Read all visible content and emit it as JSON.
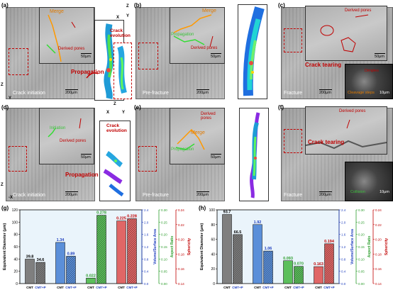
{
  "panels": {
    "a": {
      "label": "(a)",
      "stage": "Crack initiation",
      "merge": "Merge",
      "derived_pores": "Derived pores",
      "inset_scale": "50μm",
      "main_scale": "200μm",
      "propagation": "Propagation",
      "crack_evolution": "Crack evolution",
      "axes": [
        "Z",
        "X",
        "Y"
      ]
    },
    "b": {
      "label": "(b)",
      "stage": "Pre-fracture",
      "merge": "Merge",
      "derived_pores": "Derived pores",
      "propagation": "Propagation",
      "inset_scale": "50μm",
      "main_scale": "200μm"
    },
    "c": {
      "label": "(c)",
      "stage": "Fracture",
      "derived_pores": "Derived pores",
      "crack_tearing": "Crack tearing",
      "dimples": "Dimples",
      "cleavage_steps": "Cleavage steps",
      "inset_scale": "50μm",
      "main_scale": "200μm",
      "sem_scale": "10μm"
    },
    "d": {
      "label": "(d)",
      "stage": "Crack initiation",
      "initiation": "Initiation",
      "derived_pores": "Derived pores",
      "propagation": "Propagation",
      "crack_evolution": "Crack evolution",
      "inset_scale": "50μm",
      "main_scale": "200μm",
      "axes": [
        "Z",
        "X",
        "Y"
      ]
    },
    "e": {
      "label": "(e)",
      "stage": "Pre-fracture",
      "derived_pores": "Derived pores",
      "merge": "Merge",
      "propagation": "Propagation",
      "inset_scale": "50μm",
      "main_scale": "200μm"
    },
    "f": {
      "label": "(f)",
      "stage": "Fracture",
      "derived_pores": "Derived pores",
      "crack_tearing": "Crack tearing",
      "collision": "Collision",
      "main_scale": "200μm",
      "sem_scale": "10μm"
    }
  },
  "side_axes": {
    "top": [
      "Z",
      "Y"
    ],
    "bottom": [
      "Z",
      "-X"
    ]
  },
  "chart_data": [
    {
      "label": "(g)",
      "type": "bar",
      "categories": [
        "CMT",
        "CMT+P"
      ],
      "series": [
        {
          "name": "Equivalent Diameter (μm)",
          "values": [
            39.8,
            34.6
          ],
          "color": "#7f7f7f",
          "axis": "Equivalent Diameter (μm)",
          "ylim": [
            0,
            120
          ]
        },
        {
          "name": "Volume/Surface Area",
          "values": [
            1.34,
            0.89
          ],
          "color": "#5b8fd9",
          "axis": "Volume/Surface Area",
          "ylim": [
            0.0,
            2.4
          ]
        },
        {
          "name": "Aspect Ratio",
          "values": [
            0.022,
            0.278
          ],
          "color": "#5cbf5c",
          "axis": "Aspect Ratio",
          "ylim": [
            0.0,
            0.3
          ]
        },
        {
          "name": "Sphericity",
          "values": [
            0.225,
            0.228
          ],
          "color": "#e06666",
          "axis": "Sphericity",
          "ylim": [
            0.14,
            0.24
          ]
        }
      ],
      "yticks": {
        "Equivalent Diameter (μm)": [
          "0",
          "20",
          "40",
          "60",
          "80",
          "100",
          "120"
        ],
        "Volume/Surface Area": [
          "0.0",
          "0.4",
          "0.8",
          "1.2",
          "1.6",
          "2.0",
          "2.4"
        ],
        "Aspect Ratio": [
          "0.00",
          "0.05",
          "0.10",
          "0.15",
          "0.20",
          "0.25",
          "0.30"
        ],
        "Sphericity": [
          "0.14",
          "0.16",
          "0.18",
          "0.20",
          "0.22",
          "0.24"
        ]
      },
      "value_labels": [
        "39.8",
        "34.6",
        "1.34",
        "0.89",
        "0.022",
        "0.278",
        "0.225",
        "0.228"
      ]
    },
    {
      "label": "(h)",
      "type": "bar",
      "categories": [
        "CMT",
        "CMT+P"
      ],
      "series": [
        {
          "name": "Equivalent Diameter (μm)",
          "values": [
            93.7,
            66.5
          ],
          "color": "#7f7f7f",
          "axis": "Equivalent Diameter (μm)",
          "ylim": [
            0,
            100
          ]
        },
        {
          "name": "Volume/Surface Area",
          "values": [
            1.92,
            1.06
          ],
          "color": "#5b8fd9",
          "axis": "Volume/Surface Area",
          "ylim": [
            0.0,
            2.4
          ]
        },
        {
          "name": "Aspect Ratio",
          "values": [
            0.093,
            0.07
          ],
          "color": "#5cbf5c",
          "axis": "Aspect Ratio",
          "ylim": [
            0.0,
            0.3
          ]
        },
        {
          "name": "Sphericity",
          "values": [
            0.163,
            0.194
          ],
          "color": "#e06666",
          "axis": "Sphericity",
          "ylim": [
            0.14,
            0.24
          ]
        }
      ],
      "yticks": {
        "Equivalent Diameter (μm)": [
          "0",
          "20",
          "40",
          "60",
          "80",
          "100"
        ],
        "Volume/Surface Area": [
          "0.0",
          "0.4",
          "0.8",
          "1.2",
          "1.6",
          "2.0",
          "2.4"
        ],
        "Aspect Ratio": [
          "0.00",
          "0.05",
          "0.10",
          "0.15",
          "0.20",
          "0.25",
          "0.30"
        ],
        "Sphericity": [
          "0.14",
          "0.16",
          "0.18",
          "0.20",
          "0.22",
          "0.24"
        ]
      },
      "value_labels": [
        "93.7",
        "66.5",
        "1.92",
        "1.06",
        "0.093",
        "0.070",
        "0.163",
        "0.194"
      ]
    }
  ]
}
